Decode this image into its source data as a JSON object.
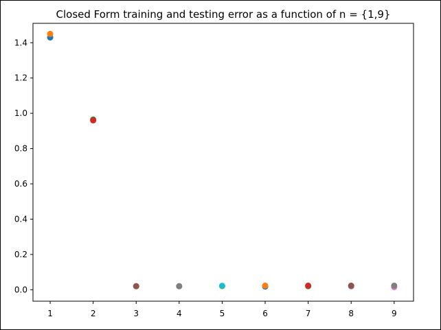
{
  "chart_data": {
    "type": "scatter",
    "title": "Closed Form training and testing error as a function of n = {1,9}",
    "xlabel": "",
    "ylabel": "",
    "xlim": [
      0.6,
      9.45
    ],
    "ylim": [
      -0.065,
      1.51
    ],
    "xticks": [
      1,
      2,
      3,
      4,
      5,
      6,
      7,
      8,
      9
    ],
    "xtick_labels": [
      "1",
      "2",
      "3",
      "4",
      "5",
      "6",
      "7",
      "8",
      "9"
    ],
    "yticks": [
      0.0,
      0.2,
      0.4,
      0.6,
      0.8,
      1.0,
      1.2,
      1.4
    ],
    "ytick_labels": [
      "0.0",
      "0.2",
      "0.4",
      "0.6",
      "0.8",
      "1.0",
      "1.2",
      "1.4"
    ],
    "grid": false,
    "legend": "none",
    "colors": [
      "#1f77b4",
      "#ff7f0e",
      "#2ca02c",
      "#d62728",
      "#9467bd",
      "#8c564b",
      "#e377c2",
      "#7f7f7f",
      "#bcbd22",
      "#17becf"
    ],
    "points": [
      {
        "x": 1,
        "y": 1.43,
        "color": "#1f77b4"
      },
      {
        "x": 1,
        "y": 1.45,
        "color": "#ff7f0e"
      },
      {
        "x": 2,
        "y": 0.965,
        "color": "#2ca02c"
      },
      {
        "x": 2,
        "y": 0.96,
        "color": "#d62728"
      },
      {
        "x": 3,
        "y": 0.02,
        "color": "#9467bd"
      },
      {
        "x": 3,
        "y": 0.02,
        "color": "#8c564b"
      },
      {
        "x": 4,
        "y": 0.02,
        "color": "#e377c2"
      },
      {
        "x": 4,
        "y": 0.02,
        "color": "#7f7f7f"
      },
      {
        "x": 5,
        "y": 0.02,
        "color": "#bcbd22"
      },
      {
        "x": 5,
        "y": 0.022,
        "color": "#17becf"
      },
      {
        "x": 6,
        "y": 0.018,
        "color": "#1f77b4"
      },
      {
        "x": 6,
        "y": 0.023,
        "color": "#ff7f0e"
      },
      {
        "x": 7,
        "y": 0.02,
        "color": "#2ca02c"
      },
      {
        "x": 7,
        "y": 0.023,
        "color": "#d62728"
      },
      {
        "x": 8,
        "y": 0.02,
        "color": "#9467bd"
      },
      {
        "x": 8,
        "y": 0.023,
        "color": "#8c564b"
      },
      {
        "x": 9,
        "y": 0.015,
        "color": "#e377c2"
      },
      {
        "x": 9,
        "y": 0.023,
        "color": "#7f7f7f"
      }
    ]
  }
}
